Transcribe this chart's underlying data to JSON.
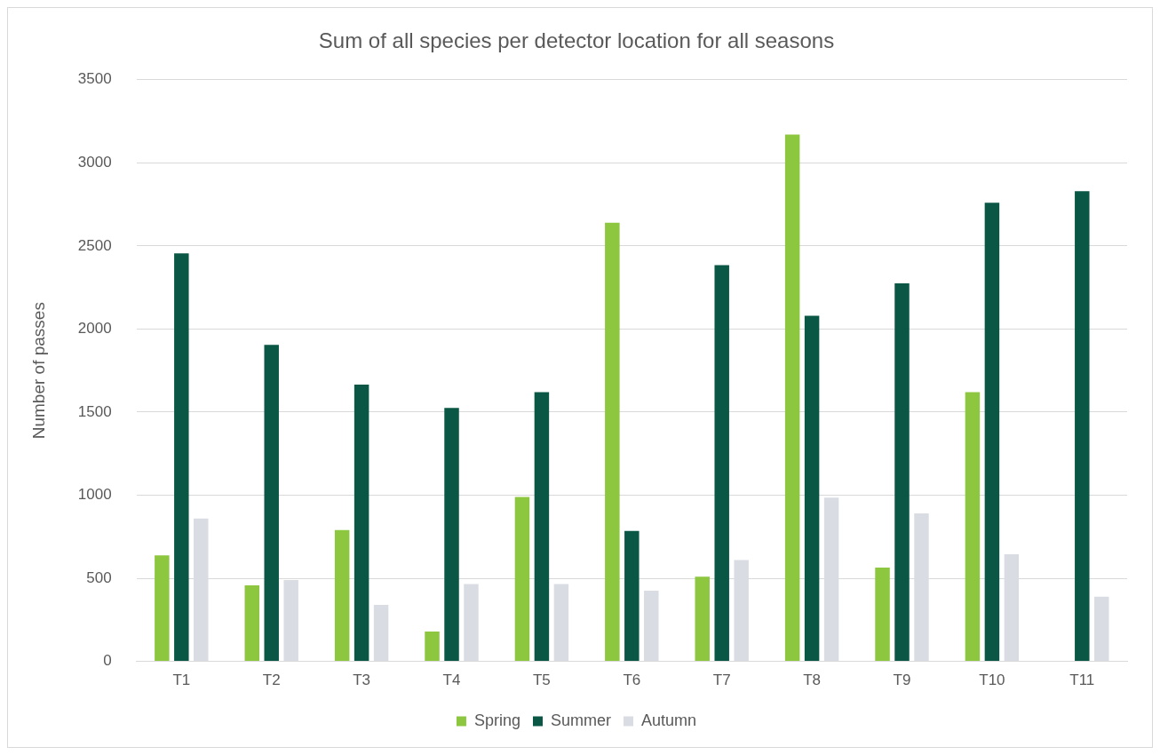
{
  "chart_data": {
    "type": "bar",
    "title": "Sum of all species per detector location for all seasons",
    "ylabel": "Number of passes",
    "categories": [
      "T1",
      "T2",
      "T3",
      "T4",
      "T5",
      "T6",
      "T7",
      "T8",
      "T9",
      "T10",
      "T11"
    ],
    "series": [
      {
        "name": "Spring",
        "color": "#8dc63f",
        "values": [
          638,
          457,
          790,
          180,
          990,
          2640,
          510,
          3170,
          565,
          1620,
          null
        ]
      },
      {
        "name": "Summer",
        "color": "#0b5745",
        "values": [
          2455,
          1905,
          1665,
          1525,
          1620,
          785,
          2385,
          2080,
          2275,
          2760,
          2830
        ]
      },
      {
        "name": "Autumn",
        "color": "#d9dde3",
        "values": [
          860,
          490,
          340,
          465,
          465,
          425,
          610,
          985,
          890,
          645,
          390
        ]
      }
    ],
    "ylim": [
      0,
      3500
    ],
    "yticks": [
      0,
      500,
      1000,
      1500,
      2000,
      2500,
      3000,
      3500
    ],
    "grid": "y",
    "legend": "bottom"
  }
}
